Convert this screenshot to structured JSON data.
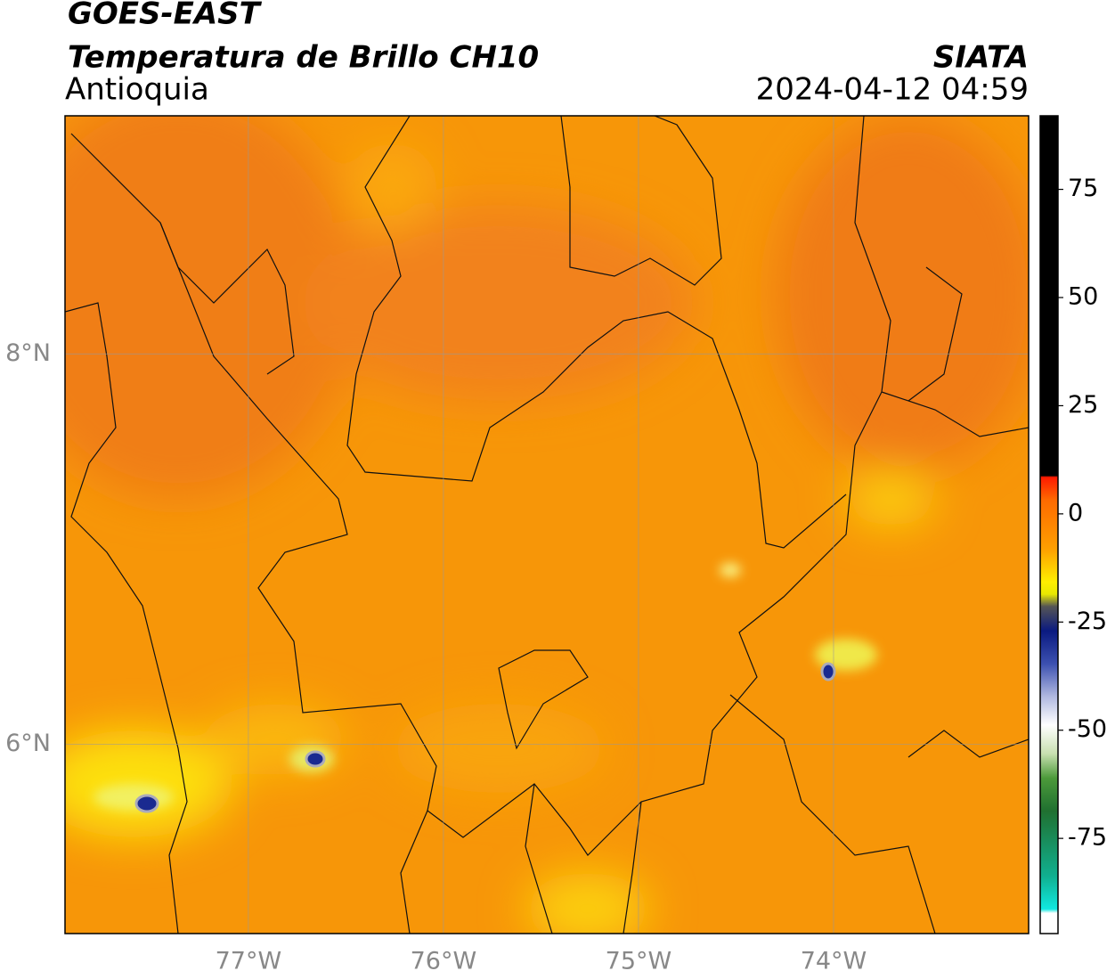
{
  "header": {
    "title": "GOES-EAST",
    "subtitle": "Temperatura de Brillo CH10",
    "region": "Antioquia",
    "source": "SIATA",
    "timestamp": "2024-04-12 04:59"
  },
  "map": {
    "xlim": [
      -77.94,
      -73.0
    ],
    "ylim": [
      5.03,
      9.22
    ],
    "xticks": [
      {
        "value": -77,
        "label": "77°W"
      },
      {
        "value": -76,
        "label": "76°W"
      },
      {
        "value": -75,
        "label": "75°W"
      },
      {
        "value": -74,
        "label": "74°W"
      }
    ],
    "yticks": [
      {
        "value": 6,
        "label": "6°N"
      },
      {
        "value": 8,
        "label": "8°N"
      }
    ],
    "grid": true
  },
  "colorbar": {
    "lim": [
      -97,
      92
    ],
    "ticks": [
      75,
      50,
      25,
      0,
      -25,
      -50,
      -75
    ]
  }
}
